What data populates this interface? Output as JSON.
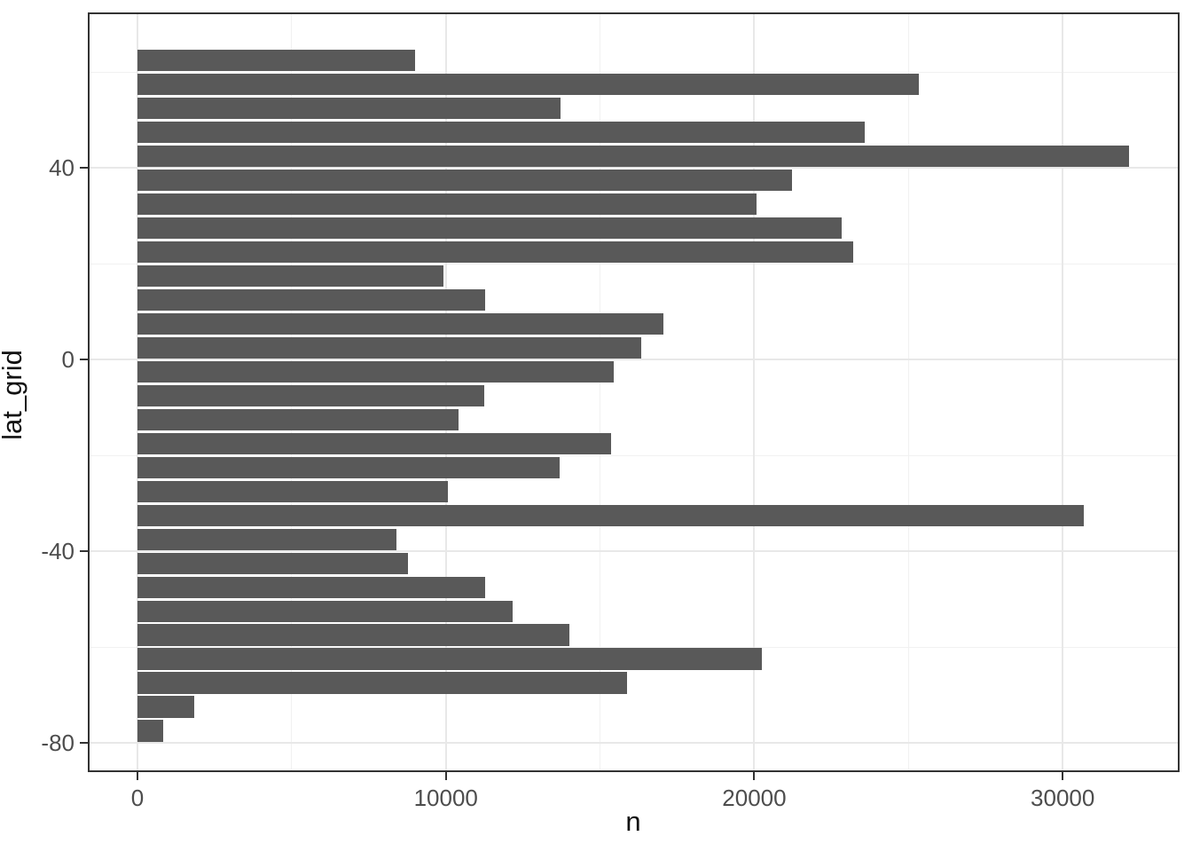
{
  "chart_data": {
    "type": "bar",
    "orientation": "horizontal",
    "title": "",
    "xlabel": "n",
    "ylabel": "lat_grid",
    "categories": [
      62.5,
      57.5,
      52.5,
      47.5,
      42.5,
      37.5,
      32.5,
      27.5,
      22.5,
      17.5,
      12.5,
      7.5,
      2.5,
      -2.5,
      -7.5,
      -12.5,
      -17.5,
      -22.5,
      -27.5,
      -32.5,
      -37.5,
      -42.5,
      -47.5,
      -52.5,
      -57.5,
      -62.5,
      -67.5,
      -72.5,
      -77.5
    ],
    "values": [
      9010,
      25330,
      13720,
      23580,
      32160,
      21230,
      20060,
      22820,
      23200,
      9930,
      11270,
      17040,
      16330,
      15430,
      11240,
      10400,
      15370,
      13680,
      10070,
      30670,
      8390,
      8780,
      11280,
      12160,
      14010,
      20240,
      15870,
      1840,
      830
    ],
    "bar_width": 4.5,
    "x_ticks": [
      0,
      10000,
      20000,
      30000
    ],
    "x_minor_ticks": [
      5000,
      15000,
      25000
    ],
    "y_ticks": [
      40,
      0,
      -40,
      -80
    ],
    "y_minor_ticks": [
      60,
      20,
      -20,
      -60
    ],
    "xlim": [
      -1610,
      33790
    ],
    "ylim": [
      -86.1,
      72.5
    ],
    "grid": true,
    "legend": false,
    "colors": {
      "bar": "#595959",
      "panel_border": "#333333",
      "grid_major": "#e8e8e8",
      "grid_minor": "#f1f1f1",
      "axis_text": "#4d4d4d",
      "axis_title": "#111111",
      "background": "#ffffff"
    }
  }
}
